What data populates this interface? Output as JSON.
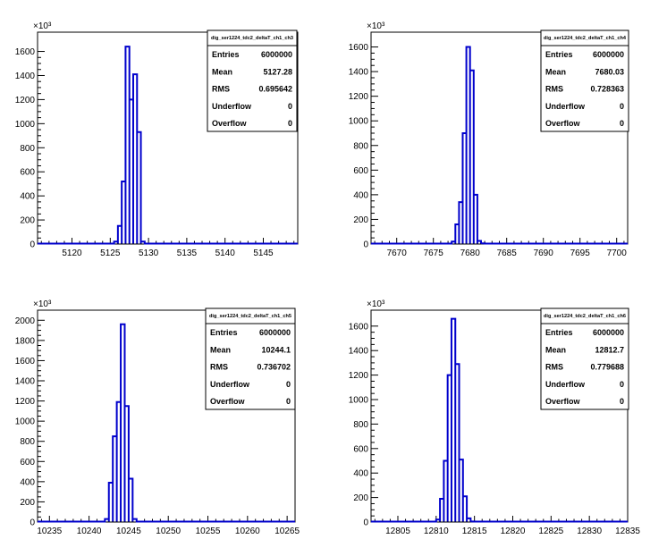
{
  "chart_data": [
    {
      "type": "bar",
      "title": "dig_ser1224_tdc2_deltaT_ch1_ch3",
      "exponent_label": "×10³",
      "xlim": [
        5115.5,
        5149.5
      ],
      "ylim": [
        0,
        1760
      ],
      "x_ticks": [
        5120,
        5125,
        5130,
        5135,
        5140,
        5145
      ],
      "y_ticks": [
        0,
        200,
        400,
        600,
        800,
        1000,
        1200,
        1400,
        1600
      ],
      "bin_width": 0.5,
      "bins_x": [
        5125.5,
        5126.0,
        5126.5,
        5127.0,
        5127.5,
        5128.0,
        5128.5,
        5129.0
      ],
      "values": [
        20,
        150,
        520,
        1640,
        1200,
        1410,
        930,
        20
      ],
      "stats": [
        {
          "label": "Entries",
          "value": "6000000"
        },
        {
          "label": "Mean",
          "value": "5127.28"
        },
        {
          "label": "RMS",
          "value": "0.695642"
        },
        {
          "label": "Underflow",
          "value": "0"
        },
        {
          "label": "Overflow",
          "value": "0"
        }
      ]
    },
    {
      "type": "bar",
      "title": "dig_ser1224_tdc2_deltaT_ch1_ch4",
      "exponent_label": "×10³",
      "xlim": [
        7666.5,
        7701.5
      ],
      "ylim": [
        0,
        1720
      ],
      "x_ticks": [
        7670,
        7675,
        7680,
        7685,
        7690,
        7695,
        7700
      ],
      "y_ticks": [
        0,
        200,
        400,
        600,
        800,
        1000,
        1200,
        1400,
        1600
      ],
      "bin_width": 0.5,
      "bins_x": [
        7677.5,
        7678.0,
        7678.5,
        7679.0,
        7679.5,
        7680.0,
        7680.5,
        7681.0,
        7681.5
      ],
      "values": [
        20,
        160,
        340,
        900,
        1600,
        1410,
        400,
        25,
        5
      ],
      "stats": [
        {
          "label": "Entries",
          "value": "6000000"
        },
        {
          "label": "Mean",
          "value": "7680.03"
        },
        {
          "label": "RMS",
          "value": "0.728363"
        },
        {
          "label": "Underflow",
          "value": "0"
        },
        {
          "label": "Overflow",
          "value": "0"
        }
      ]
    },
    {
      "type": "bar",
      "title": "dig_ser1224_tdc2_deltaT_ch1_ch5",
      "exponent_label": "×10³",
      "xlim": [
        10233.5,
        10266.0
      ],
      "ylim": [
        0,
        2100
      ],
      "x_ticks": [
        10235,
        10240,
        10245,
        10250,
        10255,
        10260,
        10265
      ],
      "y_ticks": [
        0,
        200,
        400,
        600,
        800,
        1000,
        1200,
        1400,
        1600,
        1800,
        2000
      ],
      "bin_width": 0.5,
      "bins_x": [
        10242.0,
        10242.5,
        10243.0,
        10243.5,
        10244.0,
        10244.5,
        10245.0,
        10245.5
      ],
      "values": [
        30,
        390,
        850,
        1190,
        1960,
        1150,
        430,
        30
      ],
      "stats": [
        {
          "label": "Entries",
          "value": "6000000"
        },
        {
          "label": "Mean",
          "value": "10244.1"
        },
        {
          "label": "RMS",
          "value": "0.736702"
        },
        {
          "label": "Underflow",
          "value": "0"
        },
        {
          "label": "Overflow",
          "value": "0"
        }
      ]
    },
    {
      "type": "bar",
      "title": "dig_ser1224_tdc2_deltaT_ch1_ch6",
      "exponent_label": "×10³",
      "xlim": [
        12801.5,
        12835.0
      ],
      "ylim": [
        0,
        1730
      ],
      "x_ticks": [
        12805,
        12810,
        12815,
        12820,
        12825,
        12830,
        12835
      ],
      "y_ticks": [
        0,
        200,
        400,
        600,
        800,
        1000,
        1200,
        1400,
        1600
      ],
      "bin_width": 0.5,
      "bins_x": [
        12810.0,
        12810.5,
        12811.0,
        12811.5,
        12812.0,
        12812.5,
        12813.0,
        12813.5,
        12814.0,
        12814.5
      ],
      "values": [
        20,
        190,
        500,
        1200,
        1660,
        1290,
        510,
        210,
        30,
        5
      ],
      "stats": [
        {
          "label": "Entries",
          "value": "6000000"
        },
        {
          "label": "Mean",
          "value": "12812.7"
        },
        {
          "label": "RMS",
          "value": "0.779688"
        },
        {
          "label": "Underflow",
          "value": "0"
        },
        {
          "label": "Overflow",
          "value": "0"
        }
      ]
    }
  ]
}
